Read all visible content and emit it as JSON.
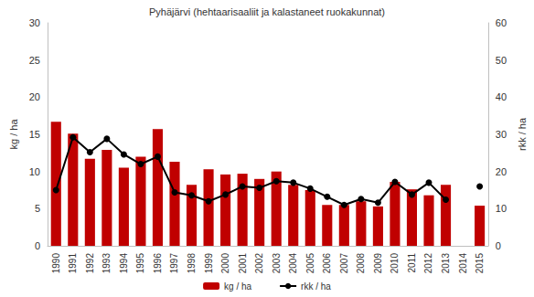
{
  "chart_data": {
    "type": "bar",
    "title": "Pyhäjärvi (hehtaarisaaliit ja kalastaneet ruokakunnat)",
    "y_label": "kg / ha",
    "y2_label": "rkk / ha",
    "categories": [
      "1990",
      "1991",
      "1992",
      "1993",
      "1994",
      "1995",
      "1996",
      "1997",
      "1998",
      "1999",
      "2000",
      "2001",
      "2002",
      "2003",
      "2004",
      "2005",
      "2006",
      "2007",
      "2008",
      "2009",
      "2010",
      "2011",
      "2012",
      "2013",
      "2014",
      "2015"
    ],
    "series": [
      {
        "name": "kg / ha",
        "type": "bar",
        "color": "#c00000",
        "axis": "y",
        "values": [
          16.7,
          15.1,
          11.7,
          12.9,
          10.5,
          12.0,
          15.7,
          11.3,
          8.2,
          10.3,
          9.6,
          9.7,
          9.0,
          10.0,
          8.2,
          7.5,
          5.5,
          5.5,
          6.0,
          5.3,
          8.6,
          7.6,
          6.8,
          8.2,
          null,
          5.4
        ]
      },
      {
        "name": "rkk / ha",
        "type": "line",
        "color": "#000000",
        "axis": "y2",
        "marker": "circle",
        "line_style": "solid",
        "values": [
          15,
          29.2,
          25.2,
          28.8,
          24.6,
          22,
          24,
          14.4,
          13.6,
          12,
          13.8,
          16,
          15.6,
          17.4,
          17,
          15.4,
          13.2,
          11,
          12.6,
          11.6,
          17.2,
          13.8,
          17,
          12.4,
          null,
          16
        ]
      }
    ],
    "ylim": [
      0,
      30
    ],
    "yticks": [
      0,
      5,
      10,
      15,
      20,
      25,
      30
    ],
    "y2lim": [
      0,
      60
    ],
    "y2ticks": [
      0,
      10,
      20,
      30,
      40,
      50,
      60
    ],
    "grid": false,
    "legend": "bottom"
  }
}
